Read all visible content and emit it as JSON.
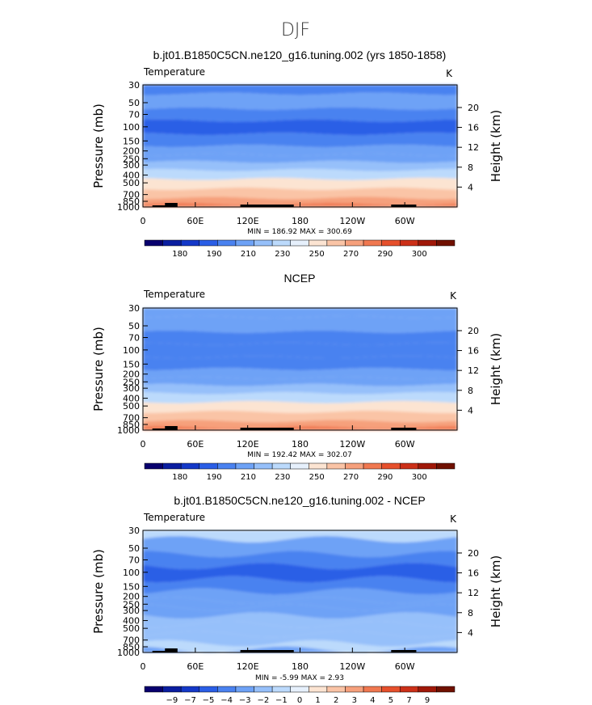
{
  "figure": {
    "title": "DJF"
  },
  "colors": {
    "temperature_scale": [
      "#08006e",
      "#0a1ea0",
      "#1438c8",
      "#2a5ee6",
      "#4a82f0",
      "#6ea2f6",
      "#96c0fa",
      "#bcdafc",
      "#e6f0fc",
      "#fce4d2",
      "#fac4a6",
      "#f6a07c",
      "#f07850",
      "#e6502c",
      "#cc3018",
      "#a01808",
      "#701000"
    ],
    "difference_scale": [
      "#08006e",
      "#0a1ea0",
      "#1438c8",
      "#2a5ee6",
      "#4a82f0",
      "#6ea2f6",
      "#96c0fa",
      "#bcdafc",
      "#e6f0fc",
      "#fce4d2",
      "#fac4a6",
      "#f6a07c",
      "#f07850",
      "#e6502c",
      "#cc3018",
      "#a01808",
      "#701000"
    ],
    "topography": "#000000"
  },
  "chart_data": [
    {
      "type": "heatmap",
      "title": "b.jt01.B1850C5CN.ne120_g16.tuning.002 (yrs 1850-1858)",
      "left_label": "Temperature",
      "right_label": "K",
      "ylabel": "Pressure  (mb)",
      "y2label": "Height  (km)",
      "pressure_ticks": [
        "30",
        "50",
        "70",
        "100",
        "150",
        "200",
        "250",
        "300",
        "400",
        "500",
        "700",
        "850",
        "1000"
      ],
      "height_ticks": [
        "4",
        "8",
        "12",
        "16",
        "20"
      ],
      "longitude_ticks": [
        "0",
        "60E",
        "120E",
        "180",
        "120W",
        "60W"
      ],
      "stats": {
        "min_label": "MIN",
        "min": "186.92",
        "max_label": "MAX",
        "max": "300.69"
      },
      "colorbar_labels": [
        "180",
        "190",
        "210",
        "230",
        "250",
        "270",
        "290",
        "300"
      ],
      "field": "temperature",
      "level_values_K": [
        206,
        212,
        202,
        198,
        202,
        210,
        216,
        220,
        236,
        250,
        262,
        276,
        286
      ]
    },
    {
      "type": "heatmap",
      "title": "NCEP",
      "left_label": "Temperature",
      "right_label": "K",
      "ylabel": "Pressure  (mb)",
      "y2label": "Height  (km)",
      "pressure_ticks": [
        "30",
        "50",
        "70",
        "100",
        "150",
        "200",
        "250",
        "300",
        "400",
        "500",
        "700",
        "850",
        "1000"
      ],
      "height_ticks": [
        "4",
        "8",
        "12",
        "16",
        "20"
      ],
      "longitude_ticks": [
        "0",
        "60E",
        "120E",
        "180",
        "120W",
        "60W"
      ],
      "stats": {
        "min_label": "MIN",
        "min": "192.42",
        "max_label": "MAX",
        "max": "302.07"
      },
      "colorbar_labels": [
        "180",
        "190",
        "210",
        "230",
        "250",
        "270",
        "290",
        "300"
      ],
      "field": "temperature",
      "level_values_K": [
        214,
        214,
        206,
        202,
        204,
        212,
        218,
        222,
        238,
        252,
        264,
        278,
        288
      ]
    },
    {
      "type": "heatmap",
      "title": "b.jt01.B1850C5CN.ne120_g16.tuning.002 - NCEP",
      "left_label": "Temperature",
      "right_label": "K",
      "ylabel": "Pressure  (mb)",
      "y2label": "Height  (km)",
      "pressure_ticks": [
        "30",
        "50",
        "70",
        "100",
        "150",
        "200",
        "250",
        "300",
        "400",
        "500",
        "700",
        "850",
        "1000"
      ],
      "height_ticks": [
        "4",
        "8",
        "12",
        "16",
        "20"
      ],
      "longitude_ticks": [
        "0",
        "60E",
        "120E",
        "180",
        "120W",
        "60W"
      ],
      "stats": {
        "min_label": "MIN",
        "min": "-5.99",
        "max_label": "MAX",
        "max": "2.93"
      },
      "colorbar_labels": [
        "−9",
        "−7",
        "−5",
        "−4",
        "−3",
        "−2",
        "−1",
        "0",
        "1",
        "2",
        "3",
        "4",
        "5",
        "7",
        "9"
      ],
      "field": "difference",
      "level_values_K": [
        -0.5,
        -2.5,
        -3.5,
        -4.5,
        -3.5,
        -3,
        -3,
        -2.5,
        -1.5,
        -1.5,
        -1.5,
        -1,
        -3
      ]
    }
  ]
}
